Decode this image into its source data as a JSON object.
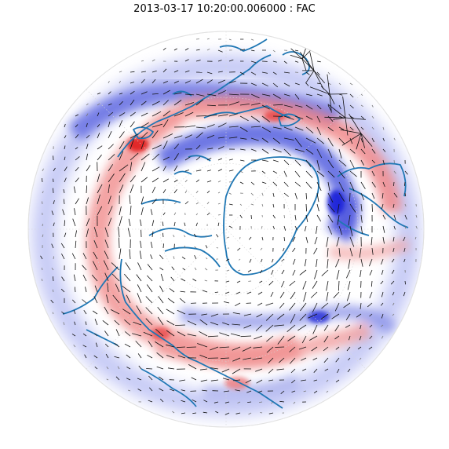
{
  "figure": {
    "title": "2013-03-17 10:20:00.006000 : FAC"
  },
  "colors": {
    "upward_current": "#e8262e",
    "downward_current": "#1f2fd6",
    "coastline": "#1f77b4",
    "vectors": "#111111",
    "grid": "#d0d0d0"
  },
  "legend": {
    "colormap": "bwr (blue = negative FAC, red = positive FAC)"
  }
}
